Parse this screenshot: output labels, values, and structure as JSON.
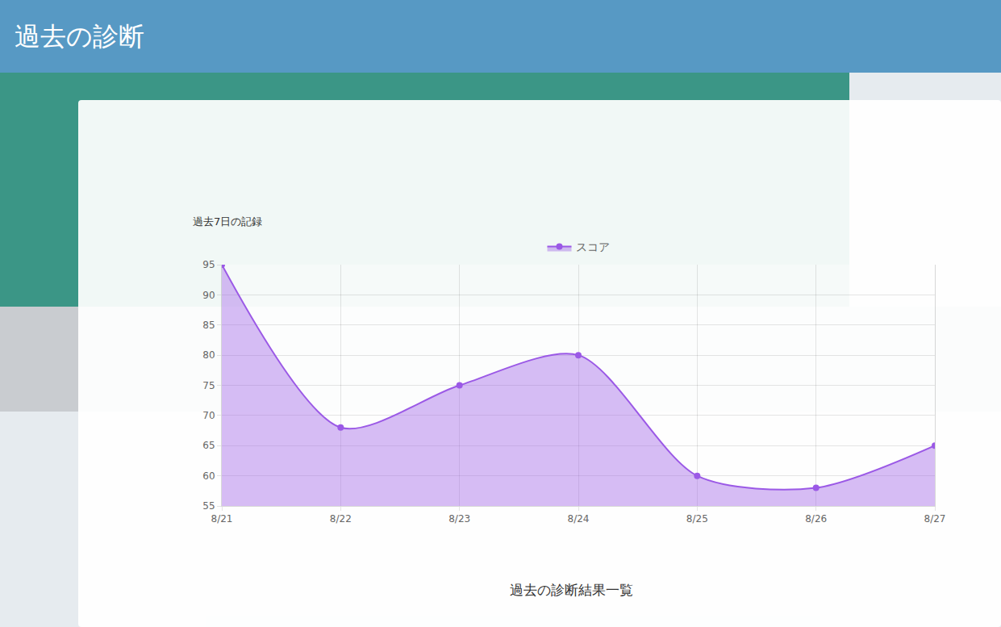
{
  "page": {
    "header": "過去の診断",
    "section_heading": "過去の診断結果一覧"
  },
  "chart_data": {
    "type": "area",
    "title": "過去7日の記録",
    "categories": [
      "8/21",
      "8/22",
      "8/23",
      "8/24",
      "8/25",
      "8/26",
      "8/27"
    ],
    "series": [
      {
        "name": "スコア",
        "color": "#9b59e6",
        "marker": "circle",
        "values": [
          95,
          68,
          75,
          80,
          60,
          58,
          65
        ]
      }
    ],
    "ylim": [
      55,
      95
    ],
    "yticks": [
      55,
      60,
      65,
      70,
      75,
      80,
      85,
      90,
      95
    ],
    "grid": true,
    "legend": "top"
  }
}
